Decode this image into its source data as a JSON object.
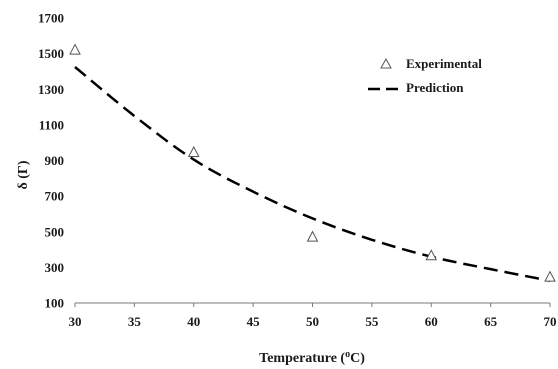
{
  "chart_data": {
    "type": "scatter",
    "xlabel": "Temperature (",
    "xlabel_sup": "o",
    "xlabel_unit": "C)",
    "ylabel": "δ (Γ)",
    "xlim": [
      30,
      70
    ],
    "ylim": [
      100,
      1700
    ],
    "x_ticks": [
      30,
      35,
      40,
      45,
      50,
      55,
      60,
      65,
      70
    ],
    "y_ticks": [
      100,
      300,
      500,
      700,
      900,
      1100,
      1300,
      1500,
      1700
    ],
    "grid": false,
    "legend_position": "top-right",
    "series": [
      {
        "name": "Experimental",
        "kind": "markers",
        "marker": "open-triangle",
        "x": [
          30,
          40,
          50,
          60,
          70
        ],
        "y": [
          1520,
          945,
          470,
          365,
          245
        ]
      },
      {
        "name": "Prediction",
        "kind": "dashed-line",
        "x": [
          30,
          35,
          40,
          45,
          50,
          55,
          60,
          65,
          70
        ],
        "y": [
          1425,
          1150,
          905,
          725,
          575,
          455,
          360,
          290,
          225
        ]
      }
    ]
  },
  "colors": {
    "marker": "#555555",
    "line": "#000000",
    "axis": "#7a7a7a"
  }
}
